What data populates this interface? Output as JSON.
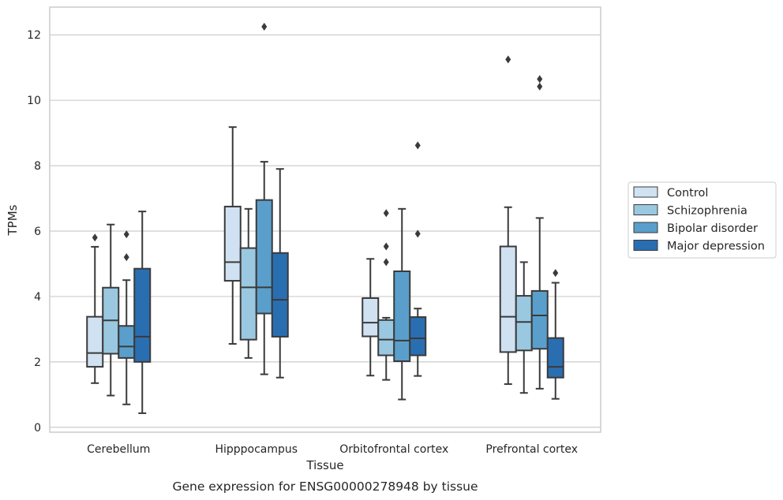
{
  "chart_data": {
    "type": "box",
    "title": "",
    "caption": "Gene expression for ENSG00000278948 by tissue",
    "xlabel": "Tissue",
    "ylabel": "TPMs",
    "ylim": [
      -0.15,
      12.85
    ],
    "yticks": [
      0,
      2,
      4,
      6,
      8,
      10,
      12
    ],
    "grid": "horizontal",
    "legend_position": "right",
    "categories": [
      "Cerebellum",
      "Hipppocampus",
      "Orbitofrontal cortex",
      "Prefrontal cortex"
    ],
    "series": [
      {
        "name": "Control",
        "color": "#d0e1f2",
        "boxes": [
          {
            "whislo": 1.35,
            "q1": 1.85,
            "med": 2.27,
            "q3": 3.38,
            "whishi": 5.52,
            "fliers": [
              5.8
            ]
          },
          {
            "whislo": 2.55,
            "q1": 4.48,
            "med": 5.05,
            "q3": 6.75,
            "whishi": 9.18,
            "fliers": []
          },
          {
            "whislo": 1.58,
            "q1": 2.78,
            "med": 3.2,
            "q3": 3.95,
            "whishi": 5.15,
            "fliers": []
          },
          {
            "whislo": 1.32,
            "q1": 2.3,
            "med": 3.38,
            "q3": 5.53,
            "whishi": 6.73,
            "fliers": [
              11.25
            ]
          }
        ]
      },
      {
        "name": "Schizophrenia",
        "color": "#9ac8e0",
        "boxes": [
          {
            "whislo": 0.97,
            "q1": 2.25,
            "med": 3.27,
            "q3": 4.27,
            "whishi": 6.2,
            "fliers": []
          },
          {
            "whislo": 2.12,
            "q1": 2.68,
            "med": 4.28,
            "q3": 5.48,
            "whishi": 6.68,
            "fliers": []
          },
          {
            "whislo": 1.45,
            "q1": 2.2,
            "med": 2.68,
            "q3": 3.28,
            "whishi": 3.35,
            "fliers": [
              5.05,
              5.53,
              6.55
            ]
          },
          {
            "whislo": 1.05,
            "q1": 2.35,
            "med": 3.22,
            "q3": 4.02,
            "whishi": 5.05,
            "fliers": []
          }
        ]
      },
      {
        "name": "Bipolar disorder",
        "color": "#5a9fcb",
        "boxes": [
          {
            "whislo": 0.7,
            "q1": 2.12,
            "med": 2.47,
            "q3": 3.1,
            "whishi": 4.5,
            "fliers": [
              5.2,
              5.9
            ]
          },
          {
            "whislo": 1.62,
            "q1": 3.48,
            "med": 4.28,
            "q3": 6.95,
            "whishi": 8.12,
            "fliers": [
              12.25
            ]
          },
          {
            "whislo": 0.85,
            "q1": 2.02,
            "med": 2.65,
            "q3": 4.77,
            "whishi": 6.68,
            "fliers": []
          },
          {
            "whislo": 1.18,
            "q1": 2.4,
            "med": 3.42,
            "q3": 4.17,
            "whishi": 6.4,
            "fliers": [
              10.42,
              10.65
            ]
          }
        ]
      },
      {
        "name": "Major depression",
        "color": "#2a6eb2",
        "boxes": [
          {
            "whislo": 0.43,
            "q1": 2.0,
            "med": 2.77,
            "q3": 4.85,
            "whishi": 6.6,
            "fliers": []
          },
          {
            "whislo": 1.52,
            "q1": 2.77,
            "med": 3.9,
            "q3": 5.33,
            "whishi": 7.9,
            "fliers": []
          },
          {
            "whislo": 1.57,
            "q1": 2.2,
            "med": 2.72,
            "q3": 3.37,
            "whishi": 3.63,
            "fliers": [
              5.92,
              8.62
            ]
          },
          {
            "whislo": 0.87,
            "q1": 1.52,
            "med": 1.85,
            "q3": 2.73,
            "whishi": 4.42,
            "fliers": [
              4.72
            ]
          }
        ]
      }
    ]
  }
}
